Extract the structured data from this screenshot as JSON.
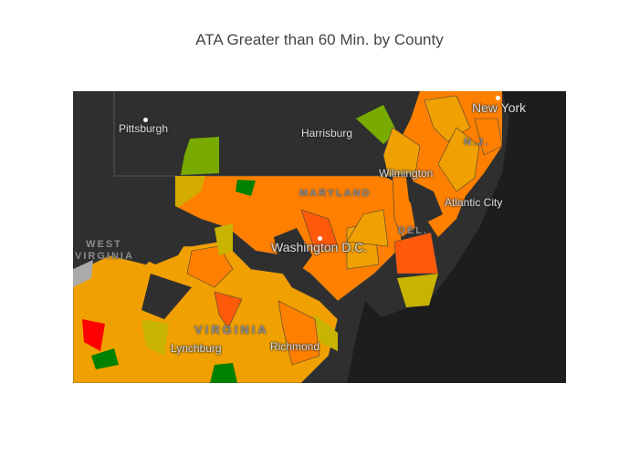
{
  "title": "ATA Greater than 60 Min. by County",
  "map": {
    "cities": [
      "Pittsburgh",
      "Harrisburg",
      "New York",
      "Wilmington",
      "Atlantic City",
      "Washington D.C.",
      "Lynchburg",
      "Richmond"
    ],
    "states": [
      "MARYLAND",
      "DEL.",
      "N.J.",
      "WEST VIRGINIA",
      "VIRGINIA"
    ],
    "colors": {
      "land": "#2f2f2f",
      "water": "#1c1d1d",
      "red": "#ff0000",
      "orange_red": "#ff5a0a",
      "orange": "#ff8000",
      "amber": "#f0a000",
      "yellow": "#c8b400",
      "lime": "#78aa00",
      "green": "#008000",
      "gray": "#aaaaaa"
    }
  }
}
